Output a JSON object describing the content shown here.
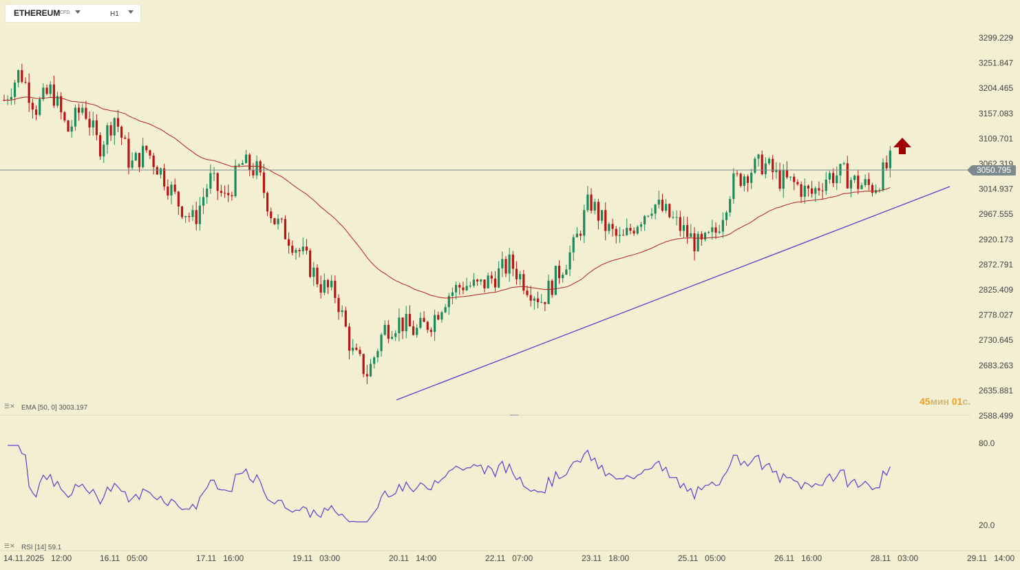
{
  "symbol": {
    "name": "ETHEREUM",
    "type": "CFD",
    "timeframe": "H1"
  },
  "price_axis": {
    "labels": [
      "3299.229",
      "3251.847",
      "3204.465",
      "3157.083",
      "3109.701",
      "3062.319",
      "3014.937",
      "2967.555",
      "2920.173",
      "2872.791",
      "2825.409",
      "2778.027",
      "2730.645",
      "2683.263",
      "2635.881",
      "2588.499"
    ]
  },
  "current_price": "3050.795",
  "rsi_axis": {
    "labels": [
      "80.0",
      "20.0"
    ]
  },
  "time_axis": {
    "labels": [
      "14.11.2025  12:00",
      "16.11  05:00",
      "17.11  16:00",
      "19.11  03:00",
      "20.11  14:00",
      "22.11  07:00",
      "23.11  18:00",
      "25.11  05:00",
      "26.11  16:00",
      "28.11  03:00",
      "29.11  14:00"
    ]
  },
  "ema_label": "EMA  [50, 0]  3003.197",
  "rsi_label": "RSI  [14]  59.1",
  "timer": {
    "min": "45",
    "min_unit": "мин",
    "sec": "01",
    "sec_unit": "с."
  },
  "colors": {
    "background": "#f3efd3",
    "bull": "#1a8a5a",
    "bear": "#b81414",
    "ema": "#b02020",
    "trendline": "#5a3ec8",
    "rsi": "#5a3ec8",
    "arrow": "#a00000"
  },
  "chart_data": {
    "type": "candlestick",
    "instrument": "ETHEREUM",
    "timeframe": "H1",
    "y_range": [
      2588.499,
      3299.229
    ],
    "ohlc_path": [
      3180,
      3235,
      3165,
      3200,
      3120,
      3170,
      3090,
      3150,
      3055,
      3085,
      3040,
      2985,
      2950,
      3030,
      2990,
      3060,
      3045,
      2955,
      2920,
      2880,
      2830,
      2810,
      2700,
      2660,
      2745,
      2760,
      2740,
      2760,
      2810,
      2830,
      2825,
      2845,
      2870,
      2830,
      2800,
      2850,
      2900,
      2990,
      2940,
      2910,
      2950,
      2985,
      2960,
      2930,
      2900,
      2930,
      3020,
      3045,
      3060,
      3030,
      3020,
      3000,
      3035,
      3040,
      3020,
      3015,
      3062
    ],
    "ema": {
      "period": 50,
      "value": 3003.197
    },
    "indicators": [
      {
        "name": "EMA",
        "params": [
          50,
          0
        ],
        "last": 3003.197
      },
      {
        "name": "RSI",
        "params": [
          14
        ],
        "last": 59.1,
        "levels": [
          80,
          20
        ]
      }
    ],
    "annotations": [
      "ascending trendline",
      "up arrow"
    ]
  }
}
